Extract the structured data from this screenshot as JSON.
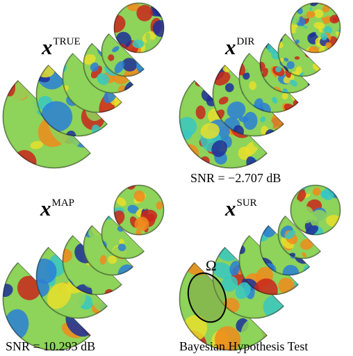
{
  "panels": [
    {
      "id": "true",
      "base": "x",
      "sup": "TRUE",
      "caption": ""
    },
    {
      "id": "dir",
      "base": "x",
      "sup": "DIR",
      "caption": "SNR = −2.707 dB"
    },
    {
      "id": "map",
      "base": "x",
      "sup": "MAP",
      "caption": "SNR = 10.293 dB"
    },
    {
      "id": "sur",
      "base": "x",
      "sup": "SUR",
      "caption": "Bayesian Hypothesis Test"
    }
  ],
  "region_label": "Ω",
  "colormap": [
    "#1d2f9a",
    "#2a7fd6",
    "#38c7c2",
    "#8ed35a",
    "#e8df2b",
    "#f08a1c",
    "#c9261c"
  ]
}
